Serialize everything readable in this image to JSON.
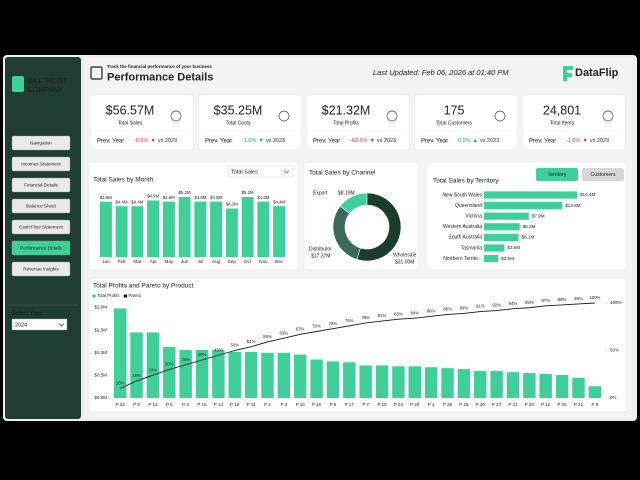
{
  "sidebar": {
    "company": [
      "BILL TRUST",
      "COMPANY"
    ],
    "nav": [
      {
        "label": "Navigation",
        "active": false
      },
      {
        "label": "Incomes Statement",
        "active": false
      },
      {
        "label": "Financial Details",
        "active": false
      },
      {
        "label": "Balance Sheet",
        "active": false
      },
      {
        "label": "Cash Flow Statement",
        "active": false
      },
      {
        "label": "Performance Details",
        "active": true
      },
      {
        "label": "Revenue Insights",
        "active": false
      }
    ],
    "select_year": {
      "label": "Select Year",
      "value": "2024"
    }
  },
  "header": {
    "subtitle": "Track the financial performance of your business",
    "title": "Performance Details",
    "last_updated": "Last Updated: Feb 06, 2026 at 01:40 PM",
    "logo": "DataFlip"
  },
  "kpis": [
    {
      "value": "$56.57M",
      "label": "Total Sales",
      "compare_label": "Prev. Year",
      "change": "-0.6%",
      "arrow": "▼",
      "vs": "vs 2023",
      "color": "#e0313b"
    },
    {
      "value": "$35.25M",
      "label": "Total Costs",
      "compare_label": "Prev. Year",
      "change": "-1.0%",
      "arrow": "▼",
      "vs": "vs 2023",
      "color": "#1aa86b"
    },
    {
      "value": "$21.32M",
      "label": "Total Profits",
      "compare_label": "Prev. Year",
      "change": "-62.6%",
      "arrow": "▼",
      "vs": "vs 2023",
      "color": "#e0313b"
    },
    {
      "value": "175",
      "label": "Total Customers",
      "compare_label": "Prev. Year",
      "change": "0.0%",
      "arrow": "▲",
      "vs": "vs 2023",
      "color": "#1aa86b"
    },
    {
      "value": "24,801",
      "label": "Total Items",
      "compare_label": "Prev. Year",
      "change": "-1.6%",
      "arrow": "▼",
      "vs": "vs 2023",
      "color": "#e0313b"
    }
  ],
  "chart_data": [
    {
      "type": "bar",
      "title": "Total Sales by Month",
      "dropdown": "Total Sales",
      "categories": [
        "Jan",
        "Feb",
        "Mar",
        "Apr",
        "May",
        "Jun",
        "Jul",
        "Aug",
        "Sep",
        "Oct",
        "Nov",
        "Dec"
      ],
      "values": [
        4.8,
        4.4,
        4.4,
        4.9,
        4.8,
        5.2,
        4.8,
        4.8,
        4.2,
        5.2,
        4.8,
        4.4
      ],
      "value_labels": [
        "$4.8M",
        "$4.4M",
        "$4.4M",
        "$4.9M",
        "$4.8M",
        "$5.2M",
        "$4.8M",
        "$4.8M",
        "$4.2M",
        "$5.2M",
        "$4.8M",
        "$4.4M"
      ],
      "color": "#3ecf9a"
    },
    {
      "type": "pie",
      "title": "Total Sales by Channel",
      "donut": true,
      "categories": [
        "Export",
        "Distributor",
        "Wholesale"
      ],
      "values": [
        8.19,
        17.37,
        31.0
      ],
      "value_labels": [
        "$8.19M",
        "$17.37M",
        "$31.00M"
      ],
      "colors": [
        "#3ecf9a",
        "#3b6b5a",
        "#1a3d30"
      ]
    },
    {
      "type": "hbar",
      "title": "Total Sales by Territory",
      "toggles": [
        {
          "label": "Territory",
          "active": true
        },
        {
          "label": "Customers",
          "active": false
        }
      ],
      "categories": [
        "New South Wales",
        "Queensland",
        "Victoria",
        "Western Australia",
        "South Australia",
        "Tasmania",
        "Northern Territo..."
      ],
      "values": [
        16.4,
        13.8,
        7.9,
        6.3,
        6.1,
        3.6,
        2.5
      ],
      "value_labels": [
        "$16.4M",
        "$13.8M",
        "$7.9M",
        "$6.3M",
        "$6.1M",
        "$3.6M",
        "$2.5M"
      ],
      "color": "#3ecf9a"
    },
    {
      "type": "combo",
      "title": "Total Profits and Pareto by Product",
      "categories": [
        "P 23",
        "P 8",
        "P 13",
        "P 5",
        "P 4",
        "P 15",
        "P 14",
        "P 18",
        "P 11",
        "P 2",
        "P 3",
        "P 10",
        "P 16",
        "P 6",
        "P 17",
        "P 7",
        "P 19",
        "P 24",
        "P 20",
        "P 1",
        "P 26",
        "P 29",
        "P 30",
        "P 27",
        "P 21",
        "P 28",
        "P 12",
        "P 25",
        "P 22",
        "P 9"
      ],
      "series": [
        {
          "name": "Total Profits",
          "type": "bar",
          "color": "#3ecf9a",
          "values": [
            1.98,
            1.45,
            1.45,
            1.13,
            1.06,
            1.06,
            1.06,
            1.02,
            1.02,
            1.0,
            1.0,
            0.96,
            0.85,
            0.81,
            0.79,
            0.72,
            0.72,
            0.7,
            0.7,
            0.68,
            0.66,
            0.64,
            0.6,
            0.6,
            0.57,
            0.55,
            0.53,
            0.51,
            0.45,
            0.26
          ]
        },
        {
          "name": "Pareto",
          "type": "line",
          "axis": "y2",
          "color": "#1a1a1a",
          "values": [
            10,
            18,
            24,
            30,
            35,
            40,
            45,
            50,
            54,
            59,
            63,
            67,
            70,
            73,
            76,
            79,
            81,
            83,
            84,
            86,
            88,
            89,
            91,
            92,
            94,
            95,
            97,
            98,
            99,
            100
          ],
          "value_labels": [
            "10%",
            "18%",
            "24%",
            "30%",
            "35%",
            "40%",
            "45%",
            "50%",
            "54%",
            "59%",
            "63%",
            "67%",
            "70%",
            "73%",
            "76%",
            "79%",
            "81%",
            "83%",
            "84%",
            "86%",
            "88%",
            "89%",
            "91%",
            "92%",
            "94%",
            "95%",
            "97%",
            "98%",
            "99%",
            "100%"
          ]
        }
      ],
      "ylim": [
        0,
        2.1
      ],
      "yticks": [
        {
          "value": 0,
          "label": "$0.0M"
        },
        {
          "value": 0.5,
          "label": "$0.5M"
        },
        {
          "value": 1,
          "label": "$1.0M"
        },
        {
          "value": 1.5,
          "label": "$1.5M"
        },
        {
          "value": 2,
          "label": "$2.0M"
        }
      ],
      "y2lim": [
        0,
        100
      ],
      "y2ticks": [
        {
          "value": 0,
          "label": "0%"
        },
        {
          "value": 50,
          "label": "50%"
        },
        {
          "value": 100,
          "label": "100%"
        }
      ]
    }
  ]
}
